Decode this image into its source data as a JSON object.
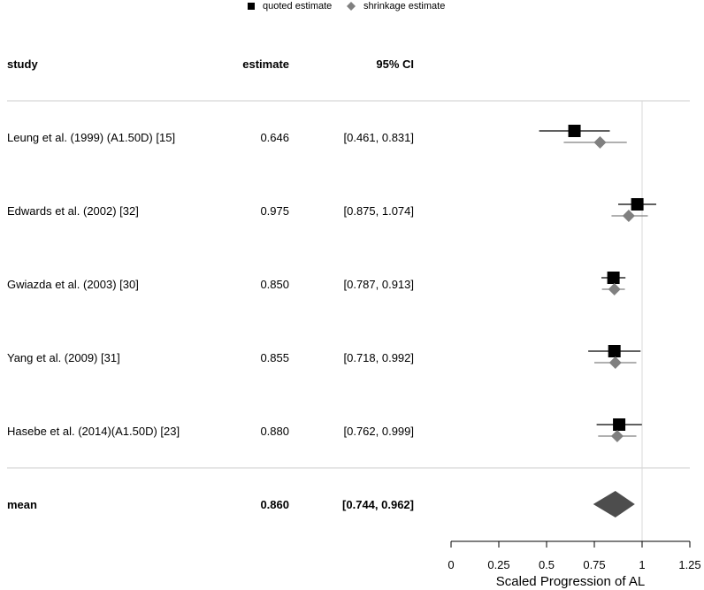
{
  "legend": {
    "quoted_label": "quoted estimate",
    "shrinkage_label": "shrinkage estimate"
  },
  "headers": {
    "study": "study",
    "estimate": "estimate",
    "ci": "95% CI"
  },
  "chart_data": {
    "type": "forest",
    "xlabel": "Scaled Progression of AL",
    "xlim": [
      0,
      1.25
    ],
    "xticks": [
      0,
      0.25,
      0.5,
      0.75,
      1,
      1.25
    ],
    "xtick_labels": [
      "0",
      "0.25",
      "0.5",
      "0.75",
      "1",
      "1.25"
    ],
    "reference_line": 1,
    "studies": [
      {
        "label": "Leung et al. (1999) (A1.50D) [15]",
        "estimate_text": "0.646",
        "ci_text": "[0.461, 0.831]",
        "estimate": 0.646,
        "lower": 0.461,
        "upper": 0.831,
        "shrink": 0.78,
        "shrink_lower": 0.59,
        "shrink_upper": 0.92
      },
      {
        "label": "Edwards et al. (2002) [32]",
        "estimate_text": "0.975",
        "ci_text": "[0.875, 1.074]",
        "estimate": 0.975,
        "lower": 0.875,
        "upper": 1.074,
        "shrink": 0.93,
        "shrink_lower": 0.84,
        "shrink_upper": 1.03
      },
      {
        "label": "Gwiazda et al. (2003) [30]",
        "estimate_text": "0.850",
        "ci_text": "[0.787, 0.913]",
        "estimate": 0.85,
        "lower": 0.787,
        "upper": 0.913,
        "shrink": 0.855,
        "shrink_lower": 0.79,
        "shrink_upper": 0.91
      },
      {
        "label": "Yang et al. (2009) [31]",
        "estimate_text": "0.855",
        "ci_text": "[0.718, 0.992]",
        "estimate": 0.855,
        "lower": 0.718,
        "upper": 0.992,
        "shrink": 0.86,
        "shrink_lower": 0.75,
        "shrink_upper": 0.97
      },
      {
        "label": "Hasebe et al. (2014)(A1.50D) [23]",
        "estimate_text": "0.880",
        "ci_text": "[0.762, 0.999]",
        "estimate": 0.88,
        "lower": 0.762,
        "upper": 0.999,
        "shrink": 0.87,
        "shrink_lower": 0.77,
        "shrink_upper": 0.97
      }
    ],
    "summary": {
      "label": "mean",
      "estimate_text": "0.860",
      "ci_text": "[0.744, 0.962]",
      "estimate": 0.86,
      "lower": 0.744,
      "upper": 0.962
    },
    "colors": {
      "quoted": "#000000",
      "shrinkage": "#808080",
      "summary": "#4d4d4d",
      "refline": "#d9d9d9",
      "separator": "#cccccc"
    }
  }
}
